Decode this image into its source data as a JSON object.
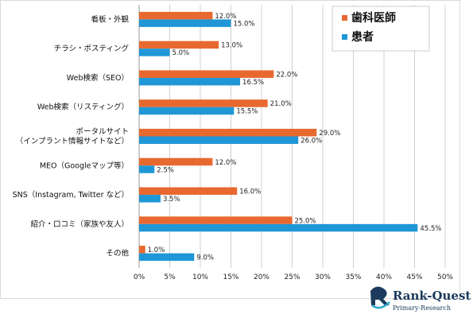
{
  "chart_data": {
    "type": "bar",
    "orientation": "horizontal",
    "categories": [
      "看板・外観",
      "チラシ・ポスティング",
      "Web検索（SEO）",
      "Web検索（リスティング）",
      "ポータルサイト\n（インプラント情報サイトなど）",
      "MEO（Googleマップ等）",
      "SNS（Instagram, Twitter など）",
      "紹介・口コミ（家族や友人）",
      "その他"
    ],
    "series": [
      {
        "name": "歯科医師",
        "color": "#e8692f",
        "values": [
          12.0,
          13.0,
          22.0,
          21.0,
          29.0,
          12.0,
          16.0,
          25.0,
          1.0
        ]
      },
      {
        "name": "患者",
        "color": "#1f97d6",
        "values": [
          15.0,
          5.0,
          16.5,
          15.5,
          26.0,
          2.5,
          3.5,
          45.5,
          9.0
        ]
      }
    ],
    "value_labels": [
      [
        "12.0%",
        "13.0%",
        "22.0%",
        "21.0%",
        "29.0%",
        "12.0%",
        "16.0%",
        "25.0%",
        "1.0%"
      ],
      [
        "15.0%",
        "5.0%",
        "16.5%",
        "15.5%",
        "26.0%",
        "2.5%",
        "3.5%",
        "45.5%",
        "9.0%"
      ]
    ],
    "xlim": [
      0,
      50
    ],
    "x_ticks": [
      0,
      5,
      10,
      15,
      20,
      25,
      30,
      35,
      40,
      45,
      50
    ],
    "x_tick_labels": [
      "0%",
      "5%",
      "10%",
      "15%",
      "20%",
      "25%",
      "30%",
      "35%",
      "40%",
      "45%",
      "50%"
    ],
    "grid": "vertical",
    "legend_position": "top-right"
  },
  "logo": {
    "name": "Rank-Quest",
    "tagline": "Primary-Research"
  }
}
